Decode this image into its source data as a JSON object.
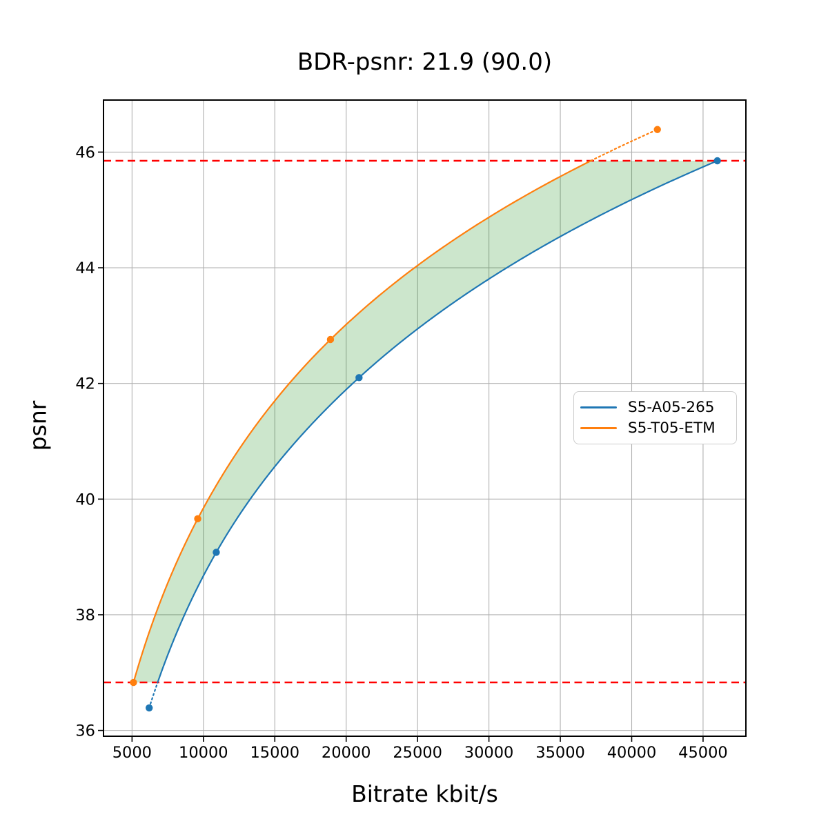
{
  "chart_data": {
    "type": "line",
    "title": "BDR-psnr: 21.9 (90.0)",
    "xlabel": "Bitrate kbit/s",
    "ylabel": "psnr",
    "xlim": [
      3000,
      48000
    ],
    "ylim": [
      35.9,
      46.9
    ],
    "x_ticks": [
      5000,
      10000,
      15000,
      20000,
      25000,
      30000,
      35000,
      40000,
      45000
    ],
    "y_ticks": [
      36,
      38,
      40,
      42,
      44,
      46
    ],
    "grid": true,
    "grid_color": "#b0b0b0",
    "legend_position": "center right",
    "interpolation": "pchip-log-x",
    "series": [
      {
        "name": "S5-A05-265",
        "color": "#1f77b4",
        "x": [
          6200,
          10900,
          20900,
          46000
        ],
        "y": [
          36.39,
          39.08,
          42.1,
          45.85
        ]
      },
      {
        "name": "S5-T05-ETM",
        "color": "#ff7f0e",
        "x": [
          5100,
          9600,
          18900,
          41800
        ],
        "y": [
          36.83,
          39.66,
          42.76,
          46.39
        ]
      }
    ],
    "overlap_lines": {
      "low": 36.83,
      "high": 45.85,
      "color": "#ff0000",
      "style": "dashed"
    },
    "fill_between": {
      "color": "#008000",
      "opacity": 0.2
    },
    "curve_style": {
      "solid_within_overlap": true,
      "dotted_outside_overlap": true
    }
  }
}
